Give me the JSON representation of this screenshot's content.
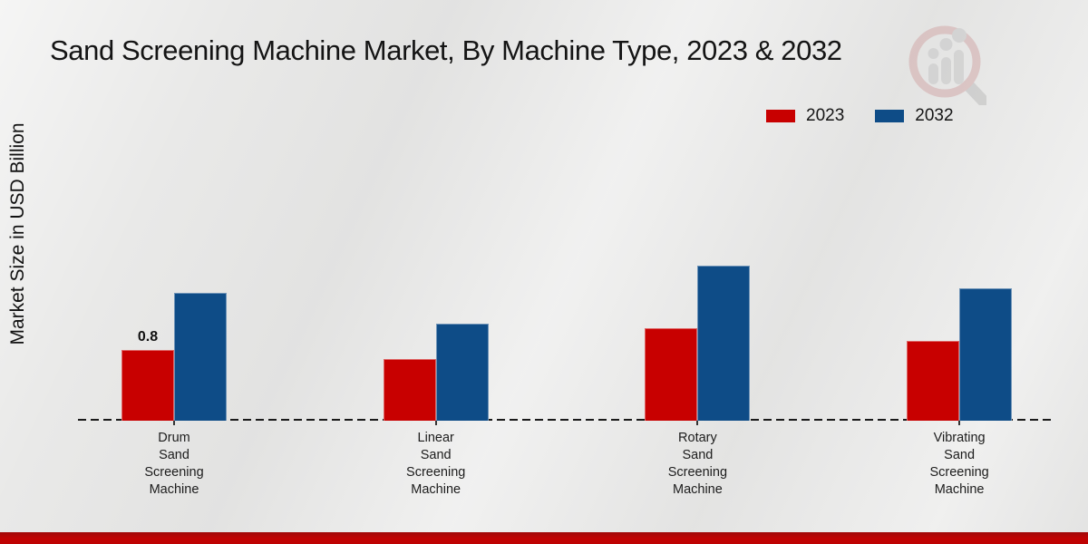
{
  "page": {
    "background_color": "#e9e9e8"
  },
  "header": {
    "title": "Sand Screening Machine Market, By Machine Type, 2023 & 2032"
  },
  "branding": {
    "logo": "market-research-magnifier-bar-chart-logo"
  },
  "footer": {
    "accent_color": "#c20202"
  },
  "chart_data": {
    "type": "bar",
    "title": "Sand Screening Machine Market, By Machine Type, 2023 & 2032",
    "xlabel": "",
    "ylabel": "Market Size in USD Billion",
    "categories": [
      "Drum Sand Screening Machine",
      "Linear Sand Screening Machine",
      "Rotary Sand Screening Machine",
      "Vibrating Sand Screening Machine"
    ],
    "series": [
      {
        "name": "2023",
        "color": "#c80000",
        "values": [
          0.8,
          0.7,
          1.05,
          0.9
        ]
      },
      {
        "name": "2032",
        "color": "#0e4c87",
        "values": [
          1.45,
          1.1,
          1.75,
          1.5
        ]
      }
    ],
    "data_labels": [
      {
        "series_index": 0,
        "category_index": 0,
        "text": "0.8"
      }
    ],
    "ylim": [
      0,
      2
    ],
    "grid": false,
    "legend_position": "top-right",
    "baseline_style": "dashed",
    "y_axis_visible": false
  }
}
